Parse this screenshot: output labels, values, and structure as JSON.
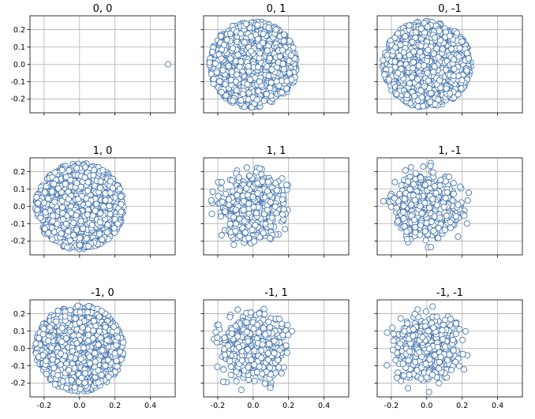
{
  "chart_data": {
    "type": "scatter",
    "marker": {
      "fill": "#ffffff",
      "edgecolor": "#4a78b0"
    },
    "grid": true,
    "shared_xlim": [
      -0.28,
      0.54
    ],
    "shared_ylim": [
      -0.28,
      0.28
    ],
    "xticks": [
      "-0.2",
      "0.0",
      "0.2",
      "0.4"
    ],
    "yticks": [
      "0.2",
      "0.1",
      "0.0",
      "-0.1",
      "-0.2"
    ],
    "panels": [
      {
        "title": "0, 0",
        "row": 0,
        "col": 0,
        "points": [
          [
            0.5,
            0.0
          ]
        ]
      },
      {
        "title": "0, 1",
        "row": 0,
        "col": 1,
        "distribution": {
          "type": "disc",
          "center": [
            0.0,
            0.0
          ],
          "radius": 0.25,
          "count": 1100
        }
      },
      {
        "title": "0, -1",
        "row": 0,
        "col": 2,
        "distribution": {
          "type": "disc",
          "center": [
            0.0,
            0.0
          ],
          "radius": 0.25,
          "count": 1100
        }
      },
      {
        "title": "1, 0",
        "row": 1,
        "col": 0,
        "distribution": {
          "type": "disc",
          "center": [
            0.0,
            0.0
          ],
          "radius": 0.25,
          "count": 1100
        }
      },
      {
        "title": "1, 1",
        "row": 1,
        "col": 1,
        "distribution": {
          "type": "gaussian",
          "center": [
            0.0,
            0.0
          ],
          "sd": 0.085,
          "max_radius": 0.26,
          "count": 650
        }
      },
      {
        "title": "1, -1",
        "row": 1,
        "col": 2,
        "distribution": {
          "type": "gaussian",
          "center": [
            0.0,
            0.0
          ],
          "sd": 0.085,
          "max_radius": 0.26,
          "count": 650
        }
      },
      {
        "title": "-1, 0",
        "row": 2,
        "col": 0,
        "distribution": {
          "type": "disc",
          "center": [
            0.0,
            0.0
          ],
          "radius": 0.25,
          "count": 1100
        }
      },
      {
        "title": "-1, 1",
        "row": 2,
        "col": 1,
        "distribution": {
          "type": "gaussian",
          "center": [
            0.0,
            0.0
          ],
          "sd": 0.085,
          "max_radius": 0.26,
          "count": 650
        }
      },
      {
        "title": "-1, -1",
        "row": 2,
        "col": 2,
        "distribution": {
          "type": "gaussian",
          "center": [
            0.0,
            0.0
          ],
          "sd": 0.085,
          "max_radius": 0.26,
          "count": 650
        }
      }
    ]
  }
}
